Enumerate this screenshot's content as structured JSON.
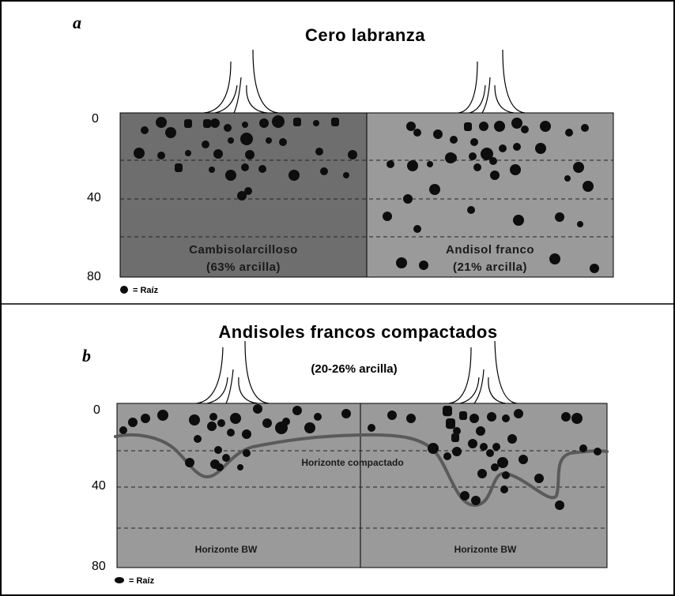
{
  "panel_a": {
    "letter": "a",
    "title": "Cero labranza",
    "depth_ticks": [
      "0",
      "40",
      "80"
    ],
    "left_soil": {
      "name": "Cambisolarcilloso",
      "clay": "(63% arcilla)"
    },
    "right_soil": {
      "name": "Andisol franco",
      "clay": "(21% arcilla)"
    },
    "legend": "= Raíz"
  },
  "panel_b": {
    "letter": "b",
    "title": "Andisoles francos compactados",
    "subtitle": "(20-26% arcilla)",
    "depth_ticks": [
      "0",
      "40",
      "80"
    ],
    "compacted_label": "Horizonte compactado",
    "left_horizon": "Horizonte BW",
    "right_horizon": "Horizonte BW",
    "legend": "= Raíz"
  },
  "colors": {
    "dark_soil": "#6e6e6e",
    "light_soil": "#9a9a9a",
    "root": "#0d0d0d",
    "compact_line": "#5a5a5a",
    "frame": "#000000"
  }
}
